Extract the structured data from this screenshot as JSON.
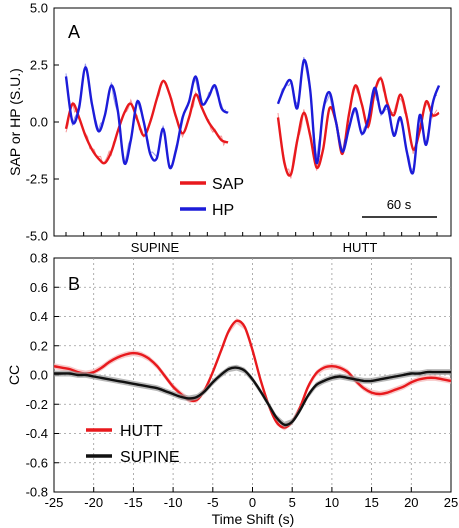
{
  "colors": {
    "sap": "#e8191d",
    "hp": "#1c1cd9",
    "hutt": "#e8191d",
    "supine": "#111111",
    "band": "#f4b4b4",
    "band_black": "#9a9a9a"
  },
  "chart_data": [
    {
      "type": "line",
      "panel": "A",
      "ylabel": "SAP or HP (S.U.)",
      "ylim": [
        -5.0,
        5.0
      ],
      "yticks": [
        "-5.0",
        "-2.5",
        "0.0",
        "2.5",
        "5.0"
      ],
      "segments": [
        "SUPINE",
        "HUTT"
      ],
      "scale_bar": "60 s",
      "legend_placement": "bottom-center",
      "series": [
        {
          "name": "SAP",
          "supine": [
            -0.3,
            0.8,
            0.2,
            -0.6,
            -1.2,
            -1.6,
            -1.8,
            -1.3,
            -0.4,
            0.4,
            0.8,
            0.1,
            -0.6,
            0.0,
            1.0,
            1.8,
            1.2,
            0.2,
            -0.5,
            0.2,
            1.2,
            0.6,
            0.0,
            -0.4,
            -0.8,
            -0.9
          ],
          "hutt": [
            0.2,
            -1.8,
            -2.3,
            -0.8,
            0.4,
            -0.6,
            -2.0,
            -1.2,
            0.6,
            0.0,
            -1.4,
            0.3,
            1.6,
            0.8,
            -0.2,
            1.3,
            1.9,
            0.8,
            0.3,
            1.2,
            0.2,
            -1.2,
            -0.4,
            0.9,
            0.3,
            0.4
          ]
        },
        {
          "name": "HP",
          "supine": [
            2.0,
            0.0,
            0.6,
            2.4,
            0.8,
            -0.4,
            0.3,
            1.6,
            0.5,
            -1.8,
            -0.8,
            0.9,
            0.0,
            -1.4,
            -1.6,
            -0.3,
            -2.0,
            -1.2,
            0.2,
            0.9,
            2.0,
            0.8,
            1.1,
            1.6,
            0.6,
            0.4
          ],
          "hutt": [
            0.8,
            1.5,
            1.8,
            0.6,
            2.7,
            1.4,
            -1.8,
            0.5,
            1.3,
            0.0,
            -1.3,
            -0.3,
            0.6,
            -0.5,
            0.1,
            1.5,
            0.4,
            0.7,
            -0.6,
            0.2,
            -1.3,
            -2.2,
            0.3,
            -1.0,
            0.8,
            1.6
          ]
        }
      ]
    },
    {
      "type": "line",
      "panel": "B",
      "xlabel": "Time Shift (s)",
      "ylabel": "CC",
      "xlim": [
        -25,
        25
      ],
      "ylim": [
        -0.8,
        0.8
      ],
      "xticks": [
        "-25",
        "-20",
        "-15",
        "-10",
        "-5",
        "0",
        "5",
        "10",
        "15",
        "20",
        "25"
      ],
      "yticks": [
        "-0.8",
        "-0.6",
        "-0.4",
        "-0.2",
        "0.0",
        "0.2",
        "0.4",
        "0.6",
        "0.8"
      ],
      "grid": true,
      "legend_placement": "bottom-left",
      "x": [
        -25,
        -24,
        -23,
        -22,
        -21,
        -20,
        -19,
        -18,
        -17,
        -16,
        -15,
        -14,
        -13,
        -12,
        -11,
        -10,
        -9,
        -8,
        -7,
        -6,
        -5,
        -4,
        -3,
        -2,
        -1,
        0,
        1,
        2,
        3,
        4,
        5,
        6,
        7,
        8,
        9,
        10,
        11,
        12,
        13,
        14,
        15,
        16,
        17,
        18,
        19,
        20,
        21,
        22,
        23,
        24,
        25
      ],
      "series": [
        {
          "name": "HUTT",
          "values": [
            0.06,
            0.05,
            0.04,
            0.02,
            0.01,
            0.02,
            0.05,
            0.09,
            0.12,
            0.14,
            0.15,
            0.14,
            0.11,
            0.06,
            -0.01,
            -0.08,
            -0.13,
            -0.17,
            -0.17,
            -0.1,
            0.02,
            0.16,
            0.3,
            0.37,
            0.33,
            0.17,
            -0.03,
            -0.2,
            -0.32,
            -0.36,
            -0.32,
            -0.22,
            -0.08,
            0.01,
            0.05,
            0.06,
            0.05,
            0.02,
            -0.04,
            -0.09,
            -0.12,
            -0.13,
            -0.12,
            -0.1,
            -0.08,
            -0.05,
            -0.03,
            -0.02,
            -0.02,
            -0.03,
            -0.04
          ]
        },
        {
          "name": "SUPINE",
          "values": [
            0.01,
            0.01,
            0.01,
            0.0,
            0.0,
            -0.01,
            -0.02,
            -0.03,
            -0.04,
            -0.05,
            -0.06,
            -0.07,
            -0.08,
            -0.09,
            -0.11,
            -0.13,
            -0.15,
            -0.16,
            -0.15,
            -0.11,
            -0.05,
            0.0,
            0.04,
            0.05,
            0.03,
            -0.03,
            -0.11,
            -0.2,
            -0.29,
            -0.34,
            -0.32,
            -0.24,
            -0.14,
            -0.07,
            -0.04,
            -0.02,
            -0.01,
            -0.02,
            -0.03,
            -0.04,
            -0.04,
            -0.03,
            -0.02,
            -0.01,
            0.0,
            0.01,
            0.01,
            0.02,
            0.02,
            0.02,
            0.02
          ]
        }
      ]
    }
  ]
}
